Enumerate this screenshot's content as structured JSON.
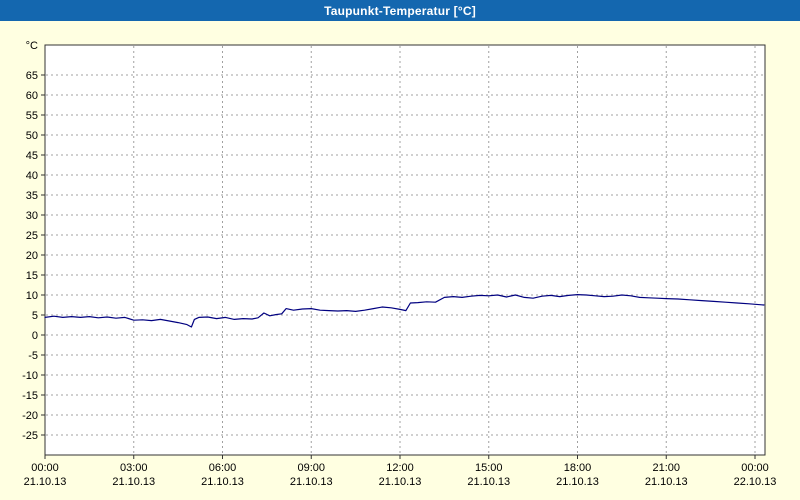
{
  "window": {
    "title": "Taupunkt-Temperatur [°C]"
  },
  "colors": {
    "title_bar": "#1467af",
    "title_text": "#ffffff",
    "background": "#ffffe1",
    "plot_bg": "#ffffff",
    "grid": "#a0a0a0",
    "axis": "#333333",
    "line": "#000080",
    "text": "#000000"
  },
  "chart_data": {
    "type": "line",
    "title": "Taupunkt-Temperatur [°C]",
    "ylabel_unit": "°C",
    "xlabel": "",
    "grid": true,
    "legend": "none",
    "ylim": [
      -30,
      72.5
    ],
    "y_ticks": [
      65,
      60,
      55,
      50,
      45,
      40,
      35,
      30,
      25,
      20,
      15,
      10,
      5,
      0,
      -5,
      -10,
      -15,
      -20,
      -25
    ],
    "x_ticks": [
      {
        "hour": 0,
        "time": "00:00",
        "date": "21.10.13"
      },
      {
        "hour": 3,
        "time": "03:00",
        "date": "21.10.13"
      },
      {
        "hour": 6,
        "time": "06:00",
        "date": "21.10.13"
      },
      {
        "hour": 9,
        "time": "09:00",
        "date": "21.10.13"
      },
      {
        "hour": 12,
        "time": "12:00",
        "date": "21.10.13"
      },
      {
        "hour": 15,
        "time": "15:00",
        "date": "21.10.13"
      },
      {
        "hour": 18,
        "time": "18:00",
        "date": "21.10.13"
      },
      {
        "hour": 21,
        "time": "21:00",
        "date": "21.10.13"
      },
      {
        "hour": 24,
        "time": "00:00",
        "date": "22.10.13"
      }
    ],
    "series": [
      {
        "name": "Taupunkt-Temperatur",
        "color": "#000080",
        "points": [
          [
            0,
            4.4
          ],
          [
            0.3,
            4.7
          ],
          [
            0.6,
            4.4
          ],
          [
            0.9,
            4.6
          ],
          [
            1.2,
            4.4
          ],
          [
            1.5,
            4.6
          ],
          [
            1.8,
            4.3
          ],
          [
            2.1,
            4.5
          ],
          [
            2.4,
            4.2
          ],
          [
            2.7,
            4.4
          ],
          [
            3.0,
            3.7
          ],
          [
            3.3,
            3.8
          ],
          [
            3.6,
            3.6
          ],
          [
            3.9,
            3.9
          ],
          [
            4.2,
            3.5
          ],
          [
            4.5,
            3.1
          ],
          [
            4.8,
            2.6
          ],
          [
            4.95,
            2.0
          ],
          [
            5.05,
            3.9
          ],
          [
            5.2,
            4.4
          ],
          [
            5.5,
            4.5
          ],
          [
            5.8,
            4.1
          ],
          [
            6.1,
            4.4
          ],
          [
            6.4,
            3.9
          ],
          [
            6.7,
            4.1
          ],
          [
            7.0,
            4.0
          ],
          [
            7.2,
            4.3
          ],
          [
            7.4,
            5.5
          ],
          [
            7.6,
            4.8
          ],
          [
            7.8,
            5.1
          ],
          [
            8.0,
            5.3
          ],
          [
            8.15,
            6.6
          ],
          [
            8.4,
            6.2
          ],
          [
            8.7,
            6.5
          ],
          [
            9.0,
            6.6
          ],
          [
            9.3,
            6.2
          ],
          [
            9.6,
            6.1
          ],
          [
            9.9,
            6.0
          ],
          [
            10.2,
            6.1
          ],
          [
            10.5,
            5.9
          ],
          [
            10.8,
            6.2
          ],
          [
            11.1,
            6.6
          ],
          [
            11.4,
            7.0
          ],
          [
            11.7,
            6.8
          ],
          [
            12.0,
            6.4
          ],
          [
            12.2,
            6.1
          ],
          [
            12.35,
            8.0
          ],
          [
            12.6,
            8.1
          ],
          [
            12.9,
            8.3
          ],
          [
            13.2,
            8.2
          ],
          [
            13.5,
            9.4
          ],
          [
            13.8,
            9.6
          ],
          [
            14.1,
            9.4
          ],
          [
            14.4,
            9.7
          ],
          [
            14.7,
            9.9
          ],
          [
            15.0,
            9.8
          ],
          [
            15.3,
            10.0
          ],
          [
            15.6,
            9.5
          ],
          [
            15.9,
            10.0
          ],
          [
            16.2,
            9.4
          ],
          [
            16.5,
            9.2
          ],
          [
            16.8,
            9.7
          ],
          [
            17.1,
            9.9
          ],
          [
            17.4,
            9.6
          ],
          [
            17.7,
            9.9
          ],
          [
            18.0,
            10.1
          ],
          [
            18.3,
            10.0
          ],
          [
            18.6,
            9.8
          ],
          [
            18.9,
            9.6
          ],
          [
            19.2,
            9.7
          ],
          [
            19.5,
            10.0
          ],
          [
            19.8,
            9.8
          ],
          [
            20.1,
            9.4
          ],
          [
            20.4,
            9.3
          ],
          [
            20.7,
            9.2
          ],
          [
            21.0,
            9.1
          ],
          [
            21.4,
            9.0
          ],
          [
            21.8,
            8.8
          ],
          [
            22.2,
            8.6
          ],
          [
            22.6,
            8.4
          ],
          [
            23.0,
            8.2
          ],
          [
            23.4,
            8.0
          ],
          [
            23.8,
            7.8
          ],
          [
            24.3,
            7.5
          ]
        ]
      }
    ]
  }
}
